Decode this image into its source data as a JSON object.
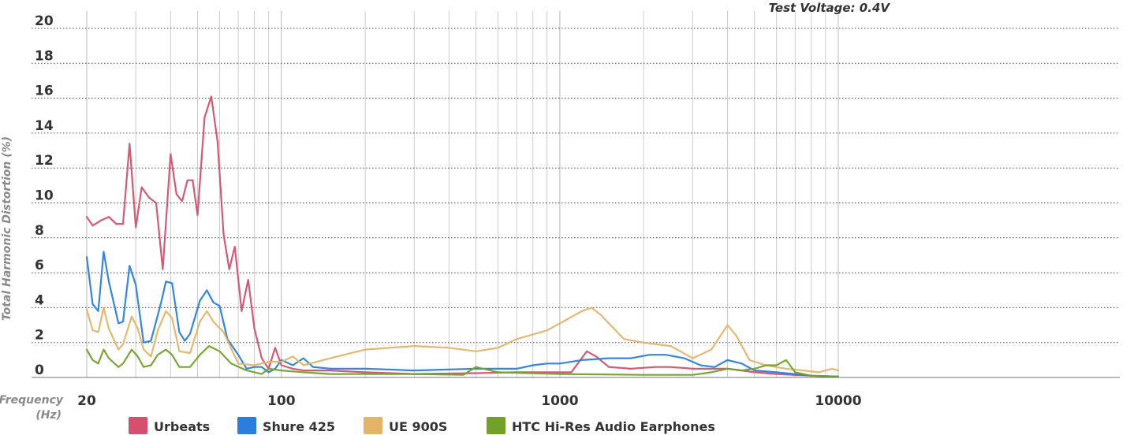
{
  "chart_data": {
    "type": "line",
    "subtitle": "Test Voltage: 0.4V",
    "ylabel": "Total Harmonic Distortion (%)",
    "xlabel": "Frequency (Hz)",
    "xlabel_lines": [
      "Frequency",
      "(Hz)"
    ],
    "xscale": "log",
    "xlim": [
      20,
      10000
    ],
    "ylim": [
      0,
      20
    ],
    "x_ticks": [
      20,
      100,
      1000,
      10000
    ],
    "y_ticks": [
      0,
      2,
      4,
      6,
      8,
      10,
      12,
      14,
      16,
      18,
      20
    ],
    "grid": true,
    "legend_position": "bottom",
    "series": [
      {
        "name": "Urbeats",
        "color": "#d4506e",
        "points": [
          [
            20,
            9.2
          ],
          [
            21,
            8.7
          ],
          [
            22.5,
            9.0
          ],
          [
            24,
            9.2
          ],
          [
            25.5,
            8.8
          ],
          [
            27,
            8.8
          ],
          [
            28.5,
            13.4
          ],
          [
            30,
            8.6
          ],
          [
            31.5,
            10.9
          ],
          [
            33.5,
            10.3
          ],
          [
            35.5,
            10.0
          ],
          [
            37.5,
            6.2
          ],
          [
            40,
            12.8
          ],
          [
            42,
            10.5
          ],
          [
            44,
            10.1
          ],
          [
            46,
            11.3
          ],
          [
            48,
            11.3
          ],
          [
            50,
            9.3
          ],
          [
            53,
            14.9
          ],
          [
            56,
            16.1
          ],
          [
            59,
            13.5
          ],
          [
            62,
            8.2
          ],
          [
            65,
            6.2
          ],
          [
            68,
            7.5
          ],
          [
            72,
            3.8
          ],
          [
            76,
            5.6
          ],
          [
            80,
            2.8
          ],
          [
            85,
            1.1
          ],
          [
            90,
            0.5
          ],
          [
            95,
            1.7
          ],
          [
            100,
            0.7
          ],
          [
            110,
            0.5
          ],
          [
            120,
            0.4
          ],
          [
            150,
            0.4
          ],
          [
            200,
            0.3
          ],
          [
            300,
            0.2
          ],
          [
            500,
            0.25
          ],
          [
            700,
            0.3
          ],
          [
            900,
            0.3
          ],
          [
            1000,
            0.3
          ],
          [
            1100,
            0.3
          ],
          [
            1250,
            1.5
          ],
          [
            1350,
            1.2
          ],
          [
            1500,
            0.6
          ],
          [
            1800,
            0.5
          ],
          [
            2200,
            0.6
          ],
          [
            2500,
            0.6
          ],
          [
            3000,
            0.5
          ],
          [
            3500,
            0.5
          ],
          [
            4000,
            0.5
          ],
          [
            4500,
            0.4
          ],
          [
            5000,
            0.3
          ],
          [
            6000,
            0.2
          ],
          [
            8000,
            0.1
          ],
          [
            10000,
            0.05
          ]
        ]
      },
      {
        "name": "Shure 425",
        "color": "#2a7fdc",
        "points": [
          [
            20,
            6.9
          ],
          [
            21,
            4.2
          ],
          [
            22,
            3.8
          ],
          [
            23,
            7.2
          ],
          [
            24,
            5.5
          ],
          [
            26,
            3.1
          ],
          [
            27,
            3.2
          ],
          [
            28.5,
            6.4
          ],
          [
            30,
            5.3
          ],
          [
            32,
            2.0
          ],
          [
            34,
            2.1
          ],
          [
            37,
            4.3
          ],
          [
            38.5,
            5.5
          ],
          [
            40.5,
            5.4
          ],
          [
            43,
            2.6
          ],
          [
            45,
            2.1
          ],
          [
            47,
            2.5
          ],
          [
            51,
            4.4
          ],
          [
            54,
            5.0
          ],
          [
            57,
            4.3
          ],
          [
            60,
            4.1
          ],
          [
            64,
            2.2
          ],
          [
            70,
            1.3
          ],
          [
            75,
            0.5
          ],
          [
            80,
            0.6
          ],
          [
            85,
            0.6
          ],
          [
            90,
            0.3
          ],
          [
            95,
            0.5
          ],
          [
            100,
            1.0
          ],
          [
            110,
            0.7
          ],
          [
            120,
            1.1
          ],
          [
            130,
            0.6
          ],
          [
            150,
            0.5
          ],
          [
            200,
            0.5
          ],
          [
            300,
            0.4
          ],
          [
            500,
            0.5
          ],
          [
            700,
            0.5
          ],
          [
            800,
            0.7
          ],
          [
            900,
            0.8
          ],
          [
            1000,
            0.8
          ],
          [
            1200,
            1.0
          ],
          [
            1500,
            1.1
          ],
          [
            1800,
            1.1
          ],
          [
            2100,
            1.3
          ],
          [
            2400,
            1.3
          ],
          [
            2800,
            1.1
          ],
          [
            3200,
            0.7
          ],
          [
            3600,
            0.6
          ],
          [
            4000,
            1.0
          ],
          [
            4500,
            0.8
          ],
          [
            5000,
            0.4
          ],
          [
            6000,
            0.3
          ],
          [
            8000,
            0.1
          ],
          [
            10000,
            0.05
          ]
        ]
      },
      {
        "name": "UE 900S",
        "color": "#e3b468",
        "points": [
          [
            20,
            3.9
          ],
          [
            21,
            2.7
          ],
          [
            22,
            2.6
          ],
          [
            23,
            4.0
          ],
          [
            24,
            2.8
          ],
          [
            26,
            1.6
          ],
          [
            27,
            1.9
          ],
          [
            29,
            3.5
          ],
          [
            30.5,
            2.8
          ],
          [
            32,
            1.6
          ],
          [
            34,
            1.2
          ],
          [
            36,
            2.7
          ],
          [
            38.5,
            3.8
          ],
          [
            40.5,
            3.4
          ],
          [
            43,
            1.5
          ],
          [
            47,
            1.4
          ],
          [
            51,
            3.2
          ],
          [
            54,
            3.8
          ],
          [
            57,
            3.2
          ],
          [
            62,
            2.6
          ],
          [
            70,
            0.8
          ],
          [
            80,
            0.7
          ],
          [
            90,
            0.9
          ],
          [
            100,
            0.9
          ],
          [
            110,
            1.2
          ],
          [
            120,
            0.7
          ],
          [
            150,
            1.1
          ],
          [
            200,
            1.6
          ],
          [
            300,
            1.8
          ],
          [
            400,
            1.7
          ],
          [
            500,
            1.5
          ],
          [
            600,
            1.7
          ],
          [
            700,
            2.2
          ],
          [
            900,
            2.7
          ],
          [
            1000,
            3.1
          ],
          [
            1200,
            3.8
          ],
          [
            1300,
            4.0
          ],
          [
            1400,
            3.6
          ],
          [
            1700,
            2.2
          ],
          [
            2000,
            2.0
          ],
          [
            2500,
            1.8
          ],
          [
            3000,
            1.1
          ],
          [
            3500,
            1.6
          ],
          [
            4000,
            3.0
          ],
          [
            4300,
            2.4
          ],
          [
            4800,
            1.0
          ],
          [
            5500,
            0.7
          ],
          [
            6500,
            0.5
          ],
          [
            7500,
            0.4
          ],
          [
            8500,
            0.3
          ],
          [
            9500,
            0.5
          ],
          [
            10000,
            0.4
          ]
        ]
      },
      {
        "name": "HTC Hi-Res Audio Earphones",
        "color": "#72a12a",
        "points": [
          [
            20,
            1.6
          ],
          [
            21,
            1.0
          ],
          [
            22,
            0.8
          ],
          [
            23,
            1.6
          ],
          [
            24,
            1.1
          ],
          [
            26,
            0.6
          ],
          [
            27,
            0.8
          ],
          [
            29,
            1.6
          ],
          [
            30.5,
            1.2
          ],
          [
            32,
            0.6
          ],
          [
            34,
            0.7
          ],
          [
            36,
            1.3
          ],
          [
            38.5,
            1.6
          ],
          [
            40.5,
            1.3
          ],
          [
            43,
            0.6
          ],
          [
            47,
            0.6
          ],
          [
            51,
            1.3
          ],
          [
            55,
            1.8
          ],
          [
            60,
            1.5
          ],
          [
            66,
            0.8
          ],
          [
            75,
            0.4
          ],
          [
            85,
            0.2
          ],
          [
            90,
            0.5
          ],
          [
            100,
            0.4
          ],
          [
            120,
            0.3
          ],
          [
            150,
            0.2
          ],
          [
            200,
            0.2
          ],
          [
            300,
            0.2
          ],
          [
            450,
            0.15
          ],
          [
            500,
            0.6
          ],
          [
            600,
            0.3
          ],
          [
            1000,
            0.2
          ],
          [
            2000,
            0.15
          ],
          [
            3000,
            0.15
          ],
          [
            3500,
            0.3
          ],
          [
            4000,
            0.5
          ],
          [
            4500,
            0.4
          ],
          [
            5000,
            0.5
          ],
          [
            5500,
            0.7
          ],
          [
            6000,
            0.7
          ],
          [
            6500,
            1.0
          ],
          [
            7000,
            0.3
          ],
          [
            8000,
            0.1
          ],
          [
            10000,
            0.05
          ]
        ]
      }
    ]
  }
}
